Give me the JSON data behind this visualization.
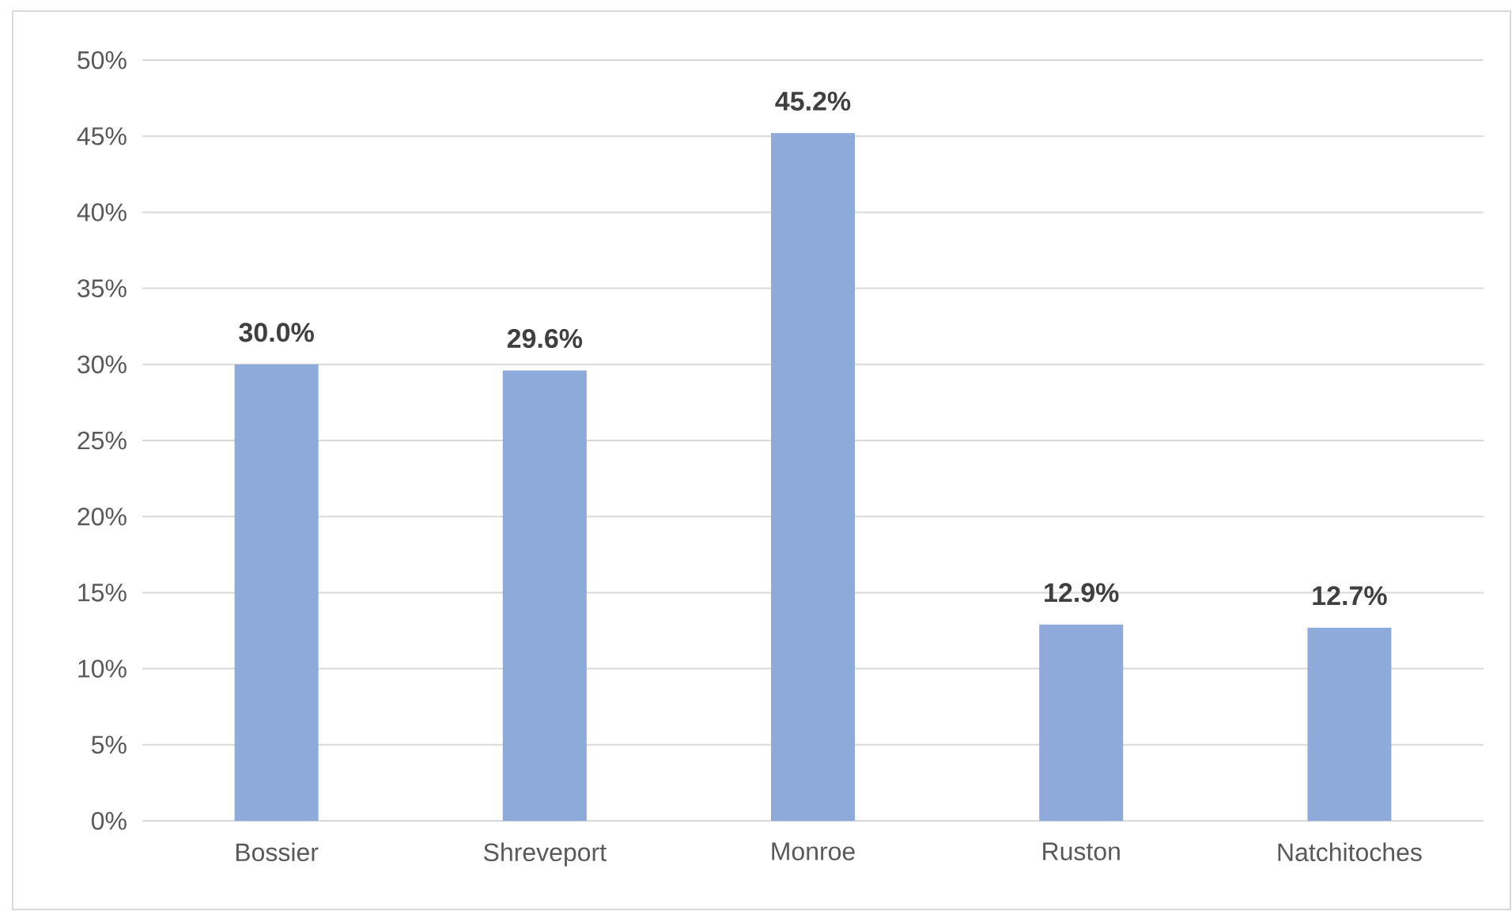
{
  "chart_data": {
    "type": "bar",
    "categories": [
      "Bossier",
      "Shreveport",
      "Monroe",
      "Ruston",
      "Natchitoches"
    ],
    "values": [
      30.0,
      29.6,
      45.2,
      12.9,
      12.7
    ],
    "value_labels": [
      "30.0%",
      "29.6%",
      "45.2%",
      "12.9%",
      "12.7%"
    ],
    "color": "#8eaadb",
    "ylim": [
      0,
      50
    ],
    "yticks": [
      {
        "value": 0,
        "label": "0%"
      },
      {
        "value": 5,
        "label": "5%"
      },
      {
        "value": 10,
        "label": "10%"
      },
      {
        "value": 15,
        "label": "15%"
      },
      {
        "value": 20,
        "label": "20%"
      },
      {
        "value": 25,
        "label": "25%"
      },
      {
        "value": 30,
        "label": "30%"
      },
      {
        "value": 35,
        "label": "35%"
      },
      {
        "value": 40,
        "label": "40%"
      },
      {
        "value": 45,
        "label": "45%"
      },
      {
        "value": 50,
        "label": "50%"
      }
    ],
    "grid": "y"
  }
}
